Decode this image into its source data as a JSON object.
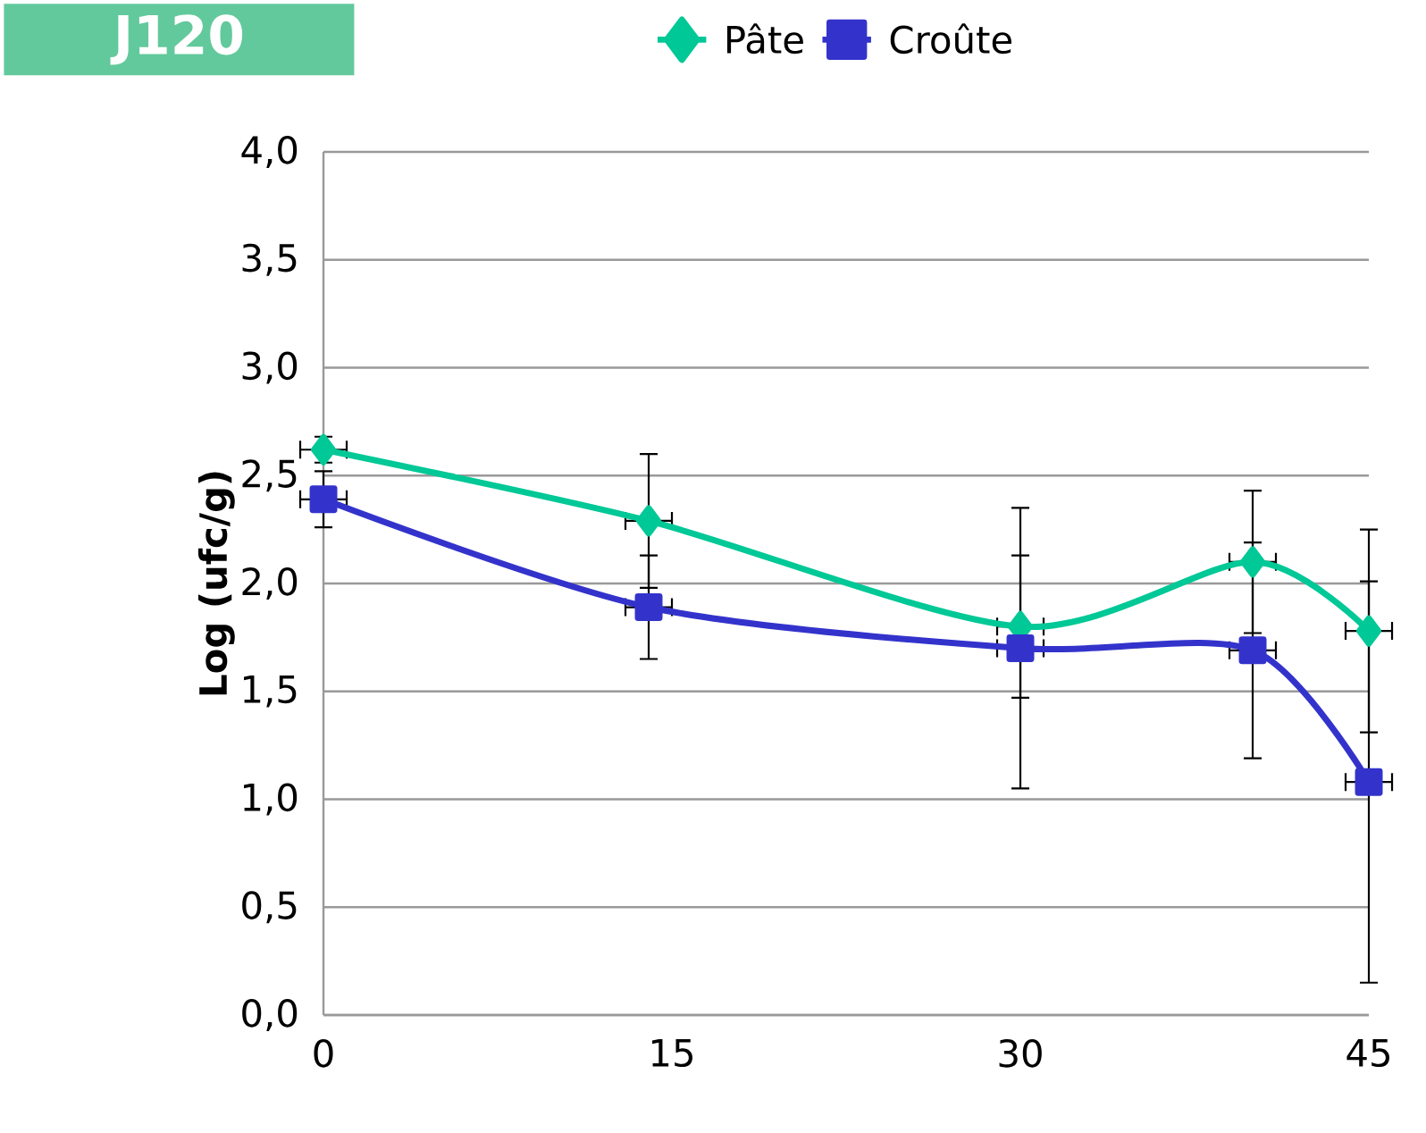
{
  "chart_data": {
    "type": "line",
    "ylabel": "Log (ufc/g)",
    "annotations": [
      "J120"
    ],
    "x": [
      0,
      14,
      30,
      40,
      45
    ],
    "series": [
      {
        "name": "Pâte",
        "color": "#00c896",
        "marker": "diamond",
        "values": [
          2.62,
          2.29,
          1.8,
          2.1,
          1.78
        ],
        "errors": [
          0.06,
          0.31,
          0.33,
          0.33,
          0.47
        ],
        "xerrors": [
          1,
          1,
          1,
          1,
          1
        ]
      },
      {
        "name": "Croûte",
        "color": "#3333cc",
        "marker": "square",
        "values": [
          2.39,
          1.89,
          1.7,
          1.69,
          1.08
        ],
        "errors": [
          0.13,
          0.24,
          0.65,
          0.5,
          0.93
        ],
        "xerrors": [
          1,
          1,
          1,
          1,
          1
        ]
      }
    ],
    "xlim": [
      0,
      45
    ],
    "xticks": [
      0,
      15,
      30,
      45
    ],
    "ylim": [
      0,
      4
    ],
    "yticks": [
      {
        "value": 0,
        "label": "0,0"
      },
      {
        "value": 0.5,
        "label": "0,5"
      },
      {
        "value": 1,
        "label": "1,0"
      },
      {
        "value": 1.5,
        "label": "1,5"
      },
      {
        "value": 2,
        "label": "2,0"
      },
      {
        "value": 2.5,
        "label": "2,5"
      },
      {
        "value": 3,
        "label": "3,0"
      },
      {
        "value": 3.5,
        "label": "3,5"
      },
      {
        "value": 4,
        "label": "4,0"
      }
    ],
    "grid": "y",
    "legend": "top"
  }
}
